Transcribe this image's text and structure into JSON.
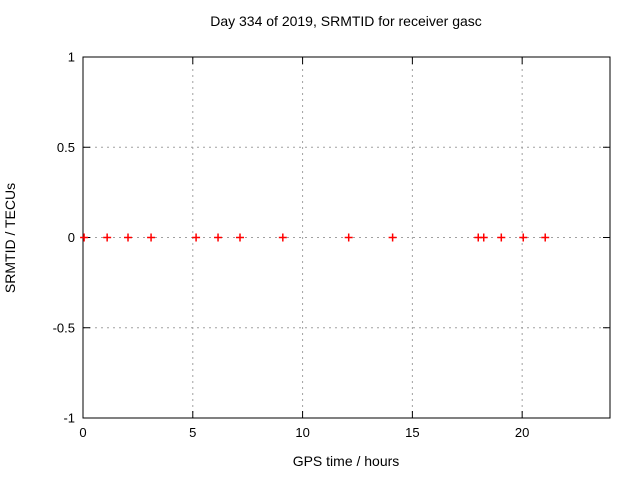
{
  "window": {
    "background": "#ffffff"
  },
  "chart_data": {
    "type": "scatter",
    "title": "Day 334 of 2019, SRMTID for receiver gasc",
    "xlabel": "GPS time / hours",
    "ylabel": "SRMTID / TECUs",
    "xlim": [
      0,
      24
    ],
    "ylim": [
      -1,
      1
    ],
    "xticks": [
      0,
      5,
      10,
      15,
      20
    ],
    "yticks": [
      -1,
      -0.5,
      0,
      0.5,
      1
    ],
    "grid": true,
    "grid_style": "dashed",
    "legend": false,
    "series": [
      {
        "name": "SRMTID",
        "marker": "plus",
        "color": "#ff0000",
        "x": [
          0.05,
          1.1,
          2.05,
          3.1,
          5.15,
          6.15,
          7.15,
          9.1,
          12.1,
          14.1,
          18.0,
          18.25,
          19.05,
          20.05,
          21.05
        ],
        "y": [
          0,
          0,
          0,
          0,
          0,
          0,
          0,
          0,
          0,
          0,
          0,
          0,
          0,
          0,
          0
        ]
      }
    ],
    "colors": {
      "marker": "#ff0000",
      "grid": "#a0a0a0",
      "axis": "#000000",
      "text": "#000000",
      "background": "#ffffff"
    }
  }
}
